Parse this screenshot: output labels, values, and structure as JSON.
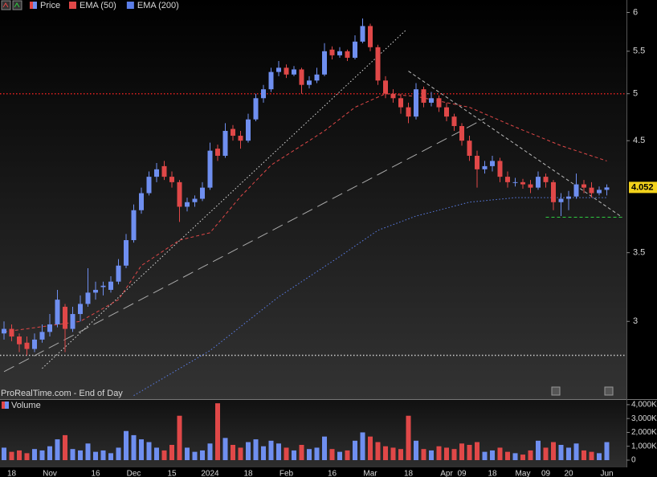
{
  "chart_data": {
    "type": "candlestick",
    "price_label": "Price",
    "source": "ProRealTime.com - End of Day",
    "up_color": "#6f8ff0",
    "down_color": "#e04848",
    "log_scale": true,
    "ylim": [
      2.52,
      6.17
    ],
    "yticks": [
      3,
      3.5,
      4.5,
      5,
      5.5,
      6
    ],
    "categories": [
      null,
      "18",
      null,
      null,
      null,
      null,
      "Nov",
      null,
      null,
      null,
      null,
      null,
      "16",
      null,
      null,
      null,
      null,
      "Dec",
      null,
      null,
      null,
      null,
      "15",
      null,
      null,
      null,
      null,
      "2024",
      null,
      null,
      null,
      null,
      "18",
      null,
      null,
      null,
      null,
      "Feb",
      null,
      null,
      null,
      null,
      null,
      "16",
      null,
      null,
      null,
      null,
      "Mar",
      null,
      null,
      null,
      null,
      "18",
      null,
      null,
      null,
      null,
      "Apr",
      null,
      "09",
      null,
      null,
      null,
      "18",
      null,
      null,
      null,
      "May",
      null,
      null,
      "09",
      null,
      null,
      "20",
      null,
      null,
      null,
      null,
      "Jun"
    ],
    "ohlc": [
      [
        2.92,
        3.0,
        2.88,
        2.95
      ],
      [
        2.95,
        2.98,
        2.87,
        2.9
      ],
      [
        2.9,
        2.92,
        2.8,
        2.85
      ],
      [
        2.86,
        2.9,
        2.78,
        2.82
      ],
      [
        2.82,
        2.92,
        2.8,
        2.88
      ],
      [
        2.88,
        2.98,
        2.86,
        2.93
      ],
      [
        2.93,
        3.05,
        2.9,
        2.98
      ],
      [
        2.98,
        3.22,
        2.96,
        3.15
      ],
      [
        3.1,
        3.12,
        2.8,
        2.95
      ],
      [
        2.95,
        3.1,
        2.93,
        3.05
      ],
      [
        3.05,
        3.18,
        3.0,
        3.12
      ],
      [
        3.12,
        3.38,
        3.1,
        3.2
      ],
      [
        3.2,
        3.28,
        3.15,
        3.22
      ],
      [
        3.24,
        3.28,
        3.18,
        3.25
      ],
      [
        3.22,
        3.32,
        3.2,
        3.28
      ],
      [
        3.28,
        3.45,
        3.26,
        3.4
      ],
      [
        3.4,
        3.65,
        3.38,
        3.6
      ],
      [
        3.6,
        3.9,
        3.58,
        3.85
      ],
      [
        3.85,
        4.05,
        3.82,
        4.0
      ],
      [
        4.0,
        4.2,
        3.98,
        4.15
      ],
      [
        4.15,
        4.28,
        4.1,
        4.22
      ],
      [
        4.25,
        4.3,
        4.12,
        4.15
      ],
      [
        4.15,
        4.2,
        4.05,
        4.1
      ],
      [
        4.1,
        4.12,
        3.75,
        3.88
      ],
      [
        3.88,
        3.96,
        3.84,
        3.92
      ],
      [
        3.92,
        3.98,
        3.88,
        3.95
      ],
      [
        3.95,
        4.1,
        3.93,
        4.05
      ],
      [
        4.05,
        4.48,
        4.03,
        4.4
      ],
      [
        4.42,
        4.46,
        4.3,
        4.35
      ],
      [
        4.35,
        4.68,
        4.33,
        4.6
      ],
      [
        4.62,
        4.66,
        4.5,
        4.55
      ],
      [
        4.55,
        4.6,
        4.42,
        4.5
      ],
      [
        4.5,
        4.78,
        4.48,
        4.72
      ],
      [
        4.72,
        5.0,
        4.7,
        4.95
      ],
      [
        4.95,
        5.1,
        4.9,
        5.05
      ],
      [
        5.05,
        5.3,
        5.02,
        5.25
      ],
      [
        5.25,
        5.38,
        5.2,
        5.3
      ],
      [
        5.3,
        5.34,
        5.18,
        5.22
      ],
      [
        5.22,
        5.32,
        5.2,
        5.28
      ],
      [
        5.28,
        5.3,
        5.0,
        5.1
      ],
      [
        5.1,
        5.2,
        5.06,
        5.15
      ],
      [
        5.15,
        5.3,
        5.12,
        5.22
      ],
      [
        5.22,
        5.6,
        5.2,
        5.5
      ],
      [
        5.52,
        5.56,
        5.4,
        5.45
      ],
      [
        5.45,
        5.55,
        5.42,
        5.5
      ],
      [
        5.5,
        5.52,
        5.38,
        5.42
      ],
      [
        5.42,
        5.7,
        5.4,
        5.62
      ],
      [
        5.62,
        5.92,
        5.6,
        5.82
      ],
      [
        5.82,
        5.85,
        5.5,
        5.55
      ],
      [
        5.55,
        5.58,
        5.1,
        5.15
      ],
      [
        5.15,
        5.2,
        4.95,
        5.0
      ],
      [
        5.0,
        5.05,
        4.9,
        4.95
      ],
      [
        4.95,
        5.0,
        4.78,
        4.85
      ],
      [
        4.85,
        4.9,
        4.68,
        4.75
      ],
      [
        4.75,
        5.12,
        4.72,
        5.05
      ],
      [
        5.05,
        5.08,
        4.85,
        4.9
      ],
      [
        4.9,
        5.02,
        4.86,
        4.95
      ],
      [
        4.95,
        4.98,
        4.8,
        4.85
      ],
      [
        4.85,
        4.9,
        4.7,
        4.75
      ],
      [
        4.75,
        4.78,
        4.6,
        4.65
      ],
      [
        4.65,
        4.68,
        4.45,
        4.5
      ],
      [
        4.5,
        4.55,
        4.3,
        4.35
      ],
      [
        4.35,
        4.4,
        4.05,
        4.22
      ],
      [
        4.22,
        4.3,
        4.18,
        4.25
      ],
      [
        4.25,
        4.35,
        4.2,
        4.3
      ],
      [
        4.3,
        4.33,
        4.1,
        4.15
      ],
      [
        4.15,
        4.2,
        4.05,
        4.1
      ],
      [
        4.1,
        4.14,
        4.06,
        4.1
      ],
      [
        4.1,
        4.13,
        4.04,
        4.08
      ],
      [
        4.08,
        4.12,
        4.0,
        4.05
      ],
      [
        4.05,
        4.2,
        4.03,
        4.15
      ],
      [
        4.15,
        4.18,
        4.05,
        4.1
      ],
      [
        4.1,
        4.12,
        3.85,
        3.92
      ],
      [
        3.92,
        4.0,
        3.8,
        3.95
      ],
      [
        3.95,
        4.02,
        3.85,
        3.97
      ],
      [
        3.97,
        4.18,
        3.95,
        4.08
      ],
      [
        4.08,
        4.12,
        4.0,
        4.05
      ],
      [
        4.05,
        4.1,
        3.96,
        4.0
      ],
      [
        4.0,
        4.06,
        3.98,
        4.03
      ],
      [
        4.03,
        4.08,
        3.98,
        4.052
      ]
    ],
    "overlays": [
      {
        "name": "EMA (50)",
        "color": "#e04848",
        "style": "dashed",
        "x": [
          0,
          10,
          15,
          18,
          23,
          27,
          31,
          35,
          42,
          46,
          50,
          54,
          61,
          67,
          73,
          79
        ],
        "values": [
          2.93,
          3.0,
          3.15,
          3.4,
          3.6,
          3.66,
          3.97,
          4.26,
          4.6,
          4.85,
          5.0,
          4.97,
          4.85,
          4.64,
          4.45,
          4.3
        ]
      },
      {
        "name": "EMA (200)",
        "color": "#5b7ee8",
        "style": "dotted",
        "x": [
          17,
          27,
          36,
          44,
          49,
          54,
          61,
          67,
          73,
          79
        ],
        "values": [
          2.54,
          2.81,
          3.17,
          3.47,
          3.68,
          3.8,
          3.92,
          3.96,
          3.96,
          3.96
        ]
      }
    ],
    "levels": [
      {
        "value": 5,
        "color": "#e02020",
        "style": "dotted"
      },
      {
        "value": 2.78,
        "color": "#cccccc",
        "style": "dotted"
      },
      {
        "value": 3.79,
        "color": "#2ecc40",
        "style": "dashed",
        "from": 71,
        "to": 81
      }
    ],
    "trendlines": [
      {
        "x": [
          5,
          52.6
        ],
        "values": [
          2.7,
          5.76
        ],
        "color": "#dddddd",
        "style": "dotted"
      },
      {
        "x": [
          0,
          63
        ],
        "values": [
          2.68,
          4.73
        ],
        "color": "#aaaaaa",
        "style": "longdash"
      },
      {
        "x": [
          53,
          81
        ],
        "values": [
          5.26,
          3.79
        ],
        "color": "#bbbbbb",
        "style": "dashed"
      }
    ],
    "volume": {
      "name": "Volume",
      "ylim": [
        0,
        4400000
      ],
      "yticks": [
        0,
        {
          "value": 1000000,
          "label": "1,000K"
        },
        {
          "value": 2000000,
          "label": "2,000K"
        },
        {
          "value": 3000000,
          "label": "3,000K"
        },
        {
          "value": 4000000,
          "label": "4,000K"
        }
      ],
      "values": [
        900000,
        600000,
        700000,
        500000,
        800000,
        700000,
        1000000,
        1500000,
        1800000,
        800000,
        700000,
        1200000,
        600000,
        700000,
        500000,
        900000,
        2100000,
        1800000,
        1500000,
        1300000,
        900000,
        700000,
        1100000,
        3200000,
        900000,
        600000,
        700000,
        1200000,
        4100000,
        1600000,
        1100000,
        900000,
        1300000,
        1500000,
        1000000,
        1400000,
        1200000,
        900000,
        700000,
        1100000,
        800000,
        900000,
        1700000,
        800000,
        600000,
        700000,
        1400000,
        2000000,
        1700000,
        1300000,
        1000000,
        900000,
        800000,
        3200000,
        1400000,
        800000,
        700000,
        1000000,
        900000,
        800000,
        1200000,
        1100000,
        1300000,
        600000,
        700000,
        900000,
        600000,
        500000,
        400000,
        700000,
        1400000,
        900000,
        1300000,
        1100000,
        900000,
        1200000,
        700000,
        600000,
        500000,
        1300000
      ]
    }
  }
}
